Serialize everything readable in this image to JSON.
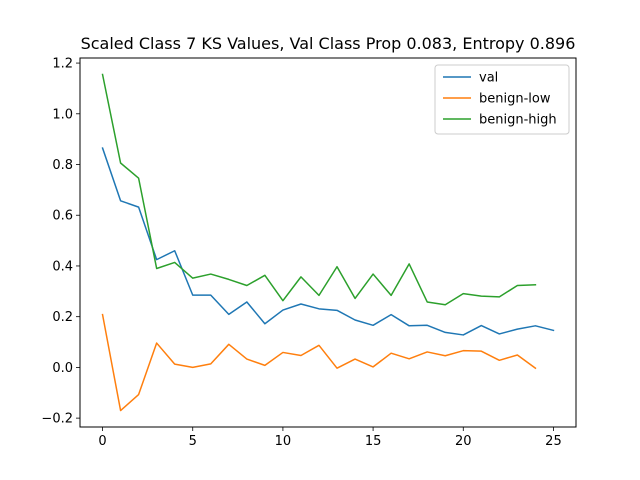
{
  "chart_data": {
    "type": "line",
    "title": "Scaled Class 7 KS Values, Val Class Prop 0.083, Entropy 0.896",
    "xlabel": "",
    "ylabel": "",
    "xlim": [
      -1.25,
      26.25
    ],
    "ylim": [
      -0.235,
      1.22
    ],
    "xticks": [
      0,
      5,
      10,
      15,
      20,
      25
    ],
    "yticks": [
      -0.2,
      0.0,
      0.2,
      0.4,
      0.6,
      0.8,
      1.0,
      1.2
    ],
    "xtick_labels": [
      "0",
      "5",
      "10",
      "15",
      "20",
      "25"
    ],
    "ytick_labels": [
      "−0.2",
      "0.0",
      "0.2",
      "0.4",
      "0.6",
      "0.8",
      "1.0",
      "1.2"
    ],
    "grid": false,
    "legend_position": "upper right",
    "series": [
      {
        "name": "val",
        "color": "#1f77b4",
        "x": [
          0,
          1,
          2,
          3,
          4,
          5,
          6,
          7,
          8,
          9,
          10,
          11,
          12,
          13,
          14,
          15,
          16,
          17,
          18,
          19,
          20,
          21,
          22,
          23,
          24,
          25
        ],
        "values": [
          0.865,
          0.657,
          0.632,
          0.425,
          0.46,
          0.285,
          0.285,
          0.209,
          0.258,
          0.172,
          0.226,
          0.25,
          0.231,
          0.225,
          0.187,
          0.166,
          0.208,
          0.164,
          0.166,
          0.138,
          0.128,
          0.165,
          0.132,
          0.151,
          0.164,
          0.146
        ]
      },
      {
        "name": "benign-low",
        "color": "#ff7f0e",
        "x": [
          0,
          1,
          2,
          3,
          4,
          5,
          6,
          7,
          8,
          9,
          10,
          11,
          12,
          13,
          14,
          15,
          16,
          17,
          18,
          19,
          20,
          21,
          22,
          23,
          24
        ],
        "values": [
          0.208,
          -0.17,
          -0.107,
          0.096,
          0.013,
          0.0,
          0.014,
          0.091,
          0.033,
          0.008,
          0.059,
          0.047,
          0.087,
          -0.003,
          0.033,
          0.002,
          0.056,
          0.034,
          0.061,
          0.046,
          0.066,
          0.064,
          0.028,
          0.049,
          -0.003
        ]
      },
      {
        "name": "benign-high",
        "color": "#2ca02c",
        "x": [
          0,
          1,
          2,
          3,
          4,
          5,
          6,
          7,
          8,
          9,
          10,
          11,
          12,
          13,
          14,
          15,
          16,
          17,
          18,
          19,
          20,
          21,
          22,
          23,
          24
        ],
        "values": [
          1.155,
          0.806,
          0.746,
          0.39,
          0.414,
          0.352,
          0.368,
          0.347,
          0.323,
          0.363,
          0.263,
          0.357,
          0.284,
          0.397,
          0.272,
          0.368,
          0.284,
          0.408,
          0.258,
          0.247,
          0.291,
          0.281,
          0.278,
          0.323,
          0.326
        ]
      }
    ]
  }
}
